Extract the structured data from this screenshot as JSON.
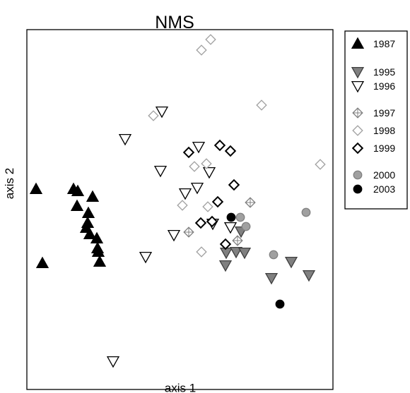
{
  "chart_data": {
    "type": "scatter",
    "title": "NMS",
    "xlabel": "axis 1",
    "ylabel": "axis 2",
    "axis_ticks_shown": false,
    "grid": false,
    "legend_position": "right",
    "xlim": [
      38,
      471
    ],
    "ylim": [
      -552,
      -42
    ],
    "series": [
      {
        "name": "1987",
        "marker": "triangle-up",
        "fill": "#000000",
        "stroke": "#000000",
        "points": [
          [
            51,
            -268
          ],
          [
            60,
            -373
          ],
          [
            104,
            -268
          ],
          [
            110,
            -271
          ],
          [
            109,
            -292
          ],
          [
            131,
            -279
          ],
          [
            125,
            -302
          ],
          [
            124,
            -316
          ],
          [
            122,
            -323
          ],
          [
            127,
            -332
          ],
          [
            137,
            -338
          ],
          [
            138,
            -352
          ],
          [
            139,
            -357
          ],
          [
            141,
            -371
          ]
        ]
      },
      {
        "name": "1995",
        "marker": "triangle-down",
        "fill": "#808080",
        "stroke": "#404040",
        "points": [
          [
            320,
            -358
          ],
          [
            334,
            -357
          ],
          [
            346,
            -358
          ],
          [
            341,
            -328
          ],
          [
            319,
            -376
          ],
          [
            384,
            -394
          ],
          [
            412,
            -371
          ],
          [
            437,
            -390
          ]
        ]
      },
      {
        "name": "1996",
        "marker": "triangle-down",
        "fill": "#ffffff",
        "stroke": "#000000",
        "points": [
          [
            229,
            -158
          ],
          [
            177,
            -197
          ],
          [
            227,
            -242
          ],
          [
            281,
            -208
          ],
          [
            262,
            -274
          ],
          [
            279,
            -266
          ],
          [
            296,
            -244
          ],
          [
            246,
            -333
          ],
          [
            206,
            -364
          ],
          [
            301,
            -317
          ],
          [
            326,
            -322
          ],
          [
            160,
            -512
          ]
        ]
      },
      {
        "name": "1997",
        "marker": "diamond-cross",
        "fill": "#ffffff",
        "stroke": "#808080",
        "points": [
          [
            267,
            -329
          ],
          [
            354,
            -287
          ],
          [
            336,
            -341
          ]
        ]
      },
      {
        "name": "1998",
        "marker": "diamond",
        "fill": "#ffffff",
        "stroke": "#a0a0a0",
        "points": [
          [
            285,
            -71
          ],
          [
            298,
            -56
          ],
          [
            217,
            -164
          ],
          [
            370,
            -149
          ],
          [
            275,
            -236
          ],
          [
            292,
            -232
          ],
          [
            258,
            -291
          ],
          [
            294,
            -293
          ],
          [
            285,
            -357
          ],
          [
            453,
            -233
          ]
        ]
      },
      {
        "name": "1999",
        "marker": "diamond",
        "fill": "#ffffff",
        "stroke": "#000000",
        "points": [
          [
            267,
            -216
          ],
          [
            311,
            -206
          ],
          [
            326,
            -214
          ],
          [
            331,
            -262
          ],
          [
            308,
            -286
          ],
          [
            284,
            -316
          ],
          [
            300,
            -314
          ],
          [
            319,
            -346
          ]
        ]
      },
      {
        "name": "2000",
        "marker": "circle",
        "fill": "#a0a0a0",
        "stroke": "#808080",
        "points": [
          [
            340,
            -308
          ],
          [
            348,
            -321
          ],
          [
            433,
            -301
          ],
          [
            387,
            -361
          ]
        ]
      },
      {
        "name": "2003",
        "marker": "circle",
        "fill": "#000000",
        "stroke": "#000000",
        "points": [
          [
            327,
            -308
          ],
          [
            396,
            -431
          ]
        ]
      }
    ],
    "legend": [
      {
        "label": "1987",
        "series": "1987"
      },
      {
        "label": "1995",
        "series": "1995"
      },
      {
        "label": "1996",
        "series": "1996"
      },
      {
        "label": "1997",
        "series": "1997"
      },
      {
        "label": "1998",
        "series": "1998"
      },
      {
        "label": "1999",
        "series": "1999"
      },
      {
        "label": "2000",
        "series": "2000"
      },
      {
        "label": "2003",
        "series": "2003"
      }
    ]
  }
}
